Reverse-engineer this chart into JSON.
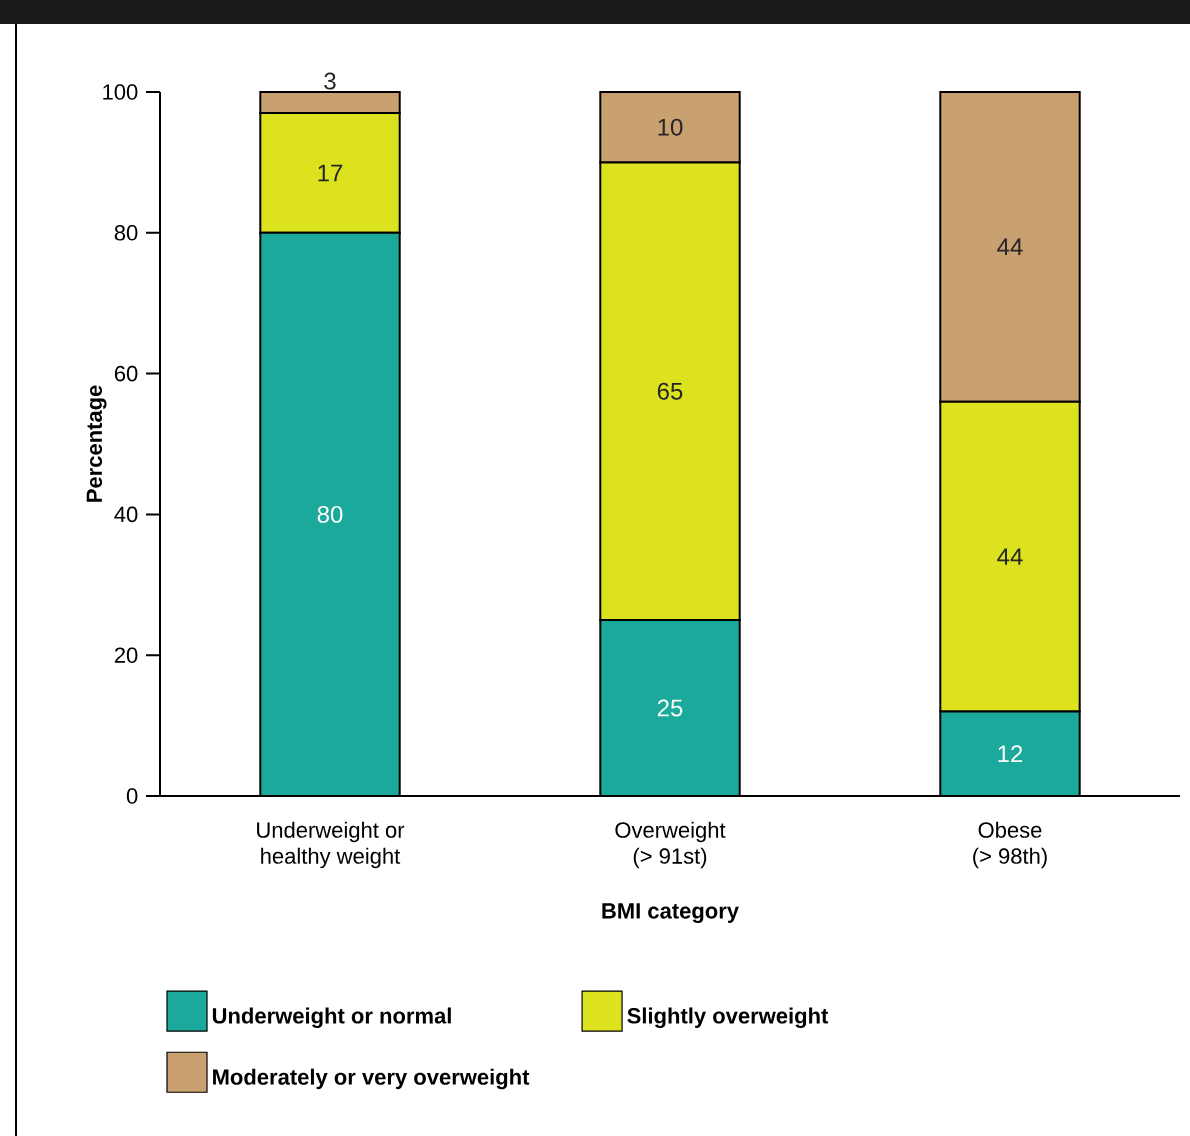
{
  "chart_data": {
    "type": "bar",
    "stacked": true,
    "xlabel": "BMI category",
    "ylabel": "Percentage",
    "categories": [
      "Underweight or healthy weight",
      "Overweight (> 91st)",
      "Obese (> 98th)"
    ],
    "series": [
      {
        "name": "Underweight or normal",
        "color": "#1aa99b",
        "values": [
          80,
          25,
          12
        ]
      },
      {
        "name": "Slightly overweight",
        "color": "#dde21f",
        "values": [
          17,
          65,
          44
        ]
      },
      {
        "name": "Moderately or very overweight",
        "color": "#c9a070",
        "values": [
          3,
          10,
          44
        ]
      }
    ],
    "ylim": [
      0,
      100
    ],
    "yticks": [
      0,
      20,
      40,
      60,
      80,
      100
    ],
    "data_labels": true,
    "legend": "bottom",
    "grid": false
  }
}
